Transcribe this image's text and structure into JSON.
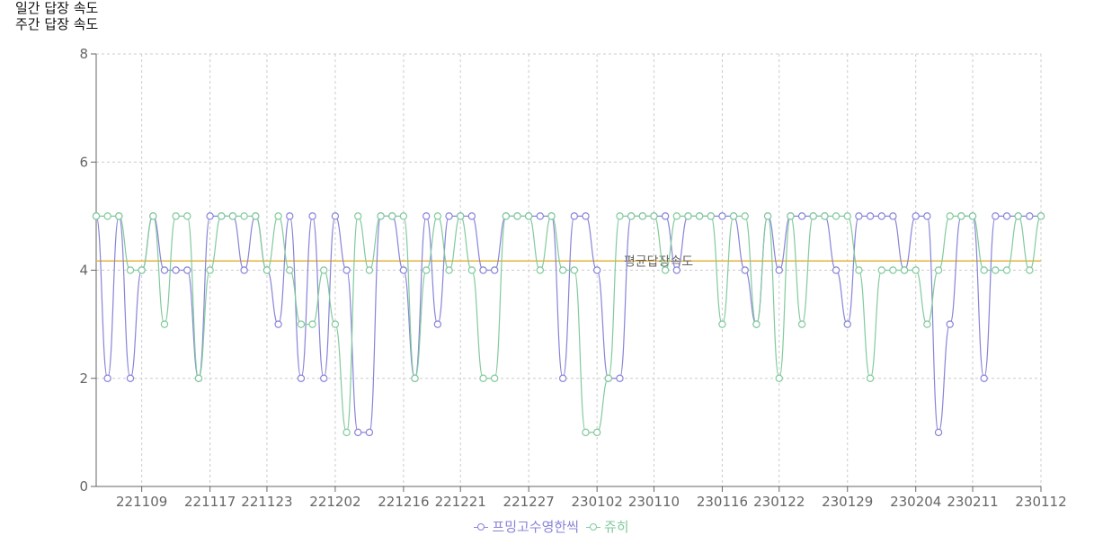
{
  "header": {
    "title_daily": "일간 답장 속도",
    "title_weekly": "주간 답장 속도"
  },
  "chart_data": {
    "type": "line",
    "ylim": [
      0,
      8
    ],
    "yticks": [
      0,
      2,
      4,
      6,
      8
    ],
    "x_tick_labels": [
      "221109",
      "221117",
      "221123",
      "221202",
      "221216",
      "221221",
      "221227",
      "230102",
      "230110",
      "230116",
      "230122",
      "230129",
      "230204",
      "230211",
      "230112"
    ],
    "grid": true,
    "legend_position": "bottom",
    "average_line": {
      "label": "평균답장속도",
      "value": 4.17,
      "color": "#e6b43c"
    },
    "series": [
      {
        "name": "프밍고수영한씩",
        "color": "#8884d8",
        "values": [
          5,
          2,
          5,
          2,
          4,
          5,
          4,
          4,
          4,
          2,
          5,
          5,
          5,
          4,
          5,
          4,
          3,
          5,
          2,
          5,
          2,
          5,
          4,
          1,
          1,
          5,
          5,
          4,
          2,
          5,
          3,
          5,
          5,
          5,
          4,
          4,
          5,
          5,
          5,
          5,
          5,
          2,
          5,
          5,
          4,
          2,
          2,
          5,
          5,
          5,
          5,
          4,
          5,
          5,
          5,
          5,
          5,
          4,
          3,
          5,
          4,
          5,
          5,
          5,
          5,
          4,
          3,
          5,
          5,
          5,
          5,
          4,
          5,
          5,
          1,
          3,
          5,
          5,
          2,
          5,
          5,
          5,
          5,
          5
        ]
      },
      {
        "name": "쥬히",
        "color": "#82ca9d",
        "values": [
          5,
          5,
          5,
          4,
          4,
          5,
          3,
          5,
          5,
          2,
          4,
          5,
          5,
          5,
          5,
          4,
          5,
          4,
          3,
          3,
          4,
          3,
          1,
          5,
          4,
          5,
          5,
          5,
          2,
          4,
          5,
          4,
          5,
          4,
          2,
          2,
          5,
          5,
          5,
          4,
          5,
          4,
          4,
          1,
          1,
          2,
          5,
          5,
          5,
          5,
          4,
          5,
          5,
          5,
          5,
          3,
          5,
          5,
          3,
          5,
          2,
          5,
          3,
          5,
          5,
          5,
          5,
          4,
          2,
          4,
          4,
          4,
          4,
          3,
          4,
          5,
          5,
          5,
          4,
          4,
          4,
          5,
          4,
          5
        ]
      }
    ]
  }
}
